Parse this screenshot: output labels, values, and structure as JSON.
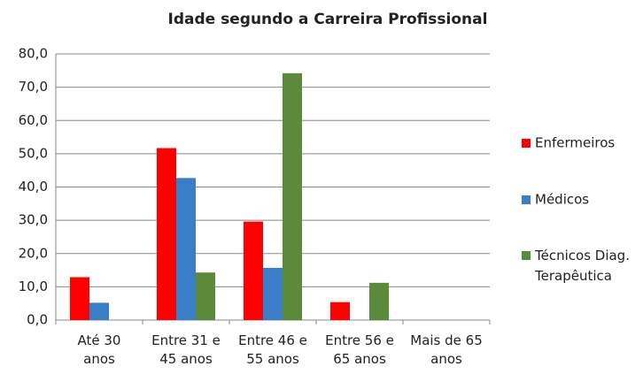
{
  "chart_data": {
    "type": "bar",
    "title": "Idade segundo a Carreira Profissional",
    "categories": [
      "Até 30\nanos",
      "Entre 31 e\n45 anos",
      "Entre 46 e\n55 anos",
      "Entre 56 e\n65 anos",
      "Mais de 65\nanos"
    ],
    "series": [
      {
        "name": "Enfermeiros",
        "color": "#ff0000",
        "values": [
          12.9,
          51.7,
          29.6,
          5.4,
          0
        ]
      },
      {
        "name": "Médicos",
        "color": "#3a7dc9",
        "values": [
          5.2,
          42.7,
          15.7,
          0,
          0
        ]
      },
      {
        "name": "Técnicos Diag.\nTerapêutica",
        "color": "#5a8a3a",
        "values": [
          0,
          14.3,
          74.2,
          11.2,
          0
        ]
      }
    ],
    "ylim": [
      0,
      80
    ],
    "yticks": [
      {
        "value": 0,
        "label": "0,0"
      },
      {
        "value": 10,
        "label": "10,0"
      },
      {
        "value": 20,
        "label": "20,0"
      },
      {
        "value": 30,
        "label": "30,0"
      },
      {
        "value": 40,
        "label": "40,0"
      },
      {
        "value": 50,
        "label": "50,0"
      },
      {
        "value": 60,
        "label": "60,0"
      },
      {
        "value": 70,
        "label": "70,0"
      },
      {
        "value": 80,
        "label": "80,0"
      }
    ],
    "grid": true,
    "legend": "right"
  }
}
